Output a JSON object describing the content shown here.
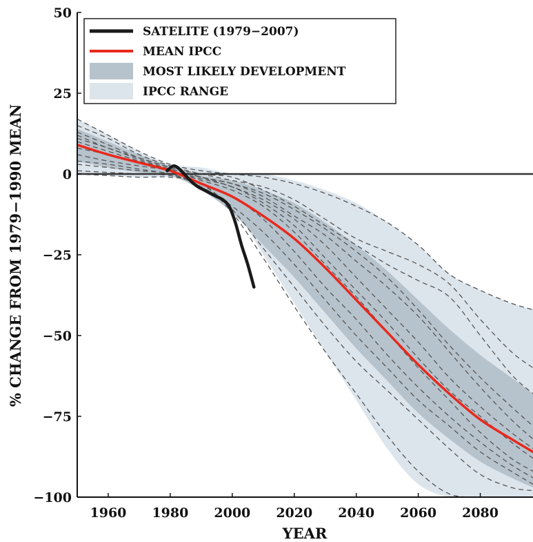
{
  "chart_data": {
    "type": "line",
    "title": "",
    "xlabel": "YEAR",
    "ylabel": "% CHANGE FROM 1979−1990 MEAN",
    "xlim": [
      1950,
      2097
    ],
    "ylim": [
      -100,
      50
    ],
    "x_ticks": [
      1960,
      1980,
      2000,
      2020,
      2040,
      2060,
      2080
    ],
    "y_ticks": [
      50,
      25,
      0,
      -25,
      -50,
      -75,
      -100
    ],
    "reference_line": 0,
    "legend_position": "top-left",
    "colors": {
      "satellite": "#1a1a1a",
      "mean": "#e8281c",
      "likely_band": "#b7c3cc",
      "range_band": "#dde5ec",
      "model_runs": "#555555",
      "zero_line": "#333333"
    },
    "legend": [
      {
        "key": "satellite",
        "label": "SATELITE (1979−2007)",
        "kind": "line"
      },
      {
        "key": "mean",
        "label": "MEAN IPCC",
        "kind": "line"
      },
      {
        "key": "likely",
        "label": "MOST LIKELY DEVELOPMENT",
        "kind": "band"
      },
      {
        "key": "range",
        "label": "IPCC RANGE",
        "kind": "band"
      }
    ],
    "series": [
      {
        "name": "SATELITE (1979−2007)",
        "x": [
          1979,
          1981,
          1983,
          1985,
          1987,
          1989,
          1991,
          1993,
          1995,
          1997,
          1999,
          2001,
          2003,
          2005,
          2007
        ],
        "y": [
          1,
          2.5,
          1.5,
          -0.5,
          -2.5,
          -4,
          -5,
          -6,
          -7,
          -8,
          -10,
          -15,
          -22,
          -28,
          -35
        ]
      },
      {
        "name": "MEAN IPCC",
        "x": [
          1950,
          1960,
          1970,
          1980,
          1990,
          2000,
          2010,
          2020,
          2030,
          2040,
          2050,
          2060,
          2070,
          2080,
          2090,
          2097
        ],
        "y": [
          9,
          6,
          3.5,
          1,
          -3,
          -7,
          -13,
          -20,
          -29,
          -39,
          -49,
          -59,
          -68,
          -76,
          -82,
          -86
        ]
      }
    ],
    "bands": [
      {
        "name": "IPCC RANGE",
        "x": [
          1950,
          1960,
          1970,
          1980,
          1990,
          2000,
          2010,
          2020,
          2030,
          2040,
          2050,
          2060,
          2070,
          2080,
          2090,
          2097
        ],
        "upper": [
          17,
          12,
          7,
          3,
          2,
          0,
          0,
          -2,
          -5,
          -9,
          -15,
          -22,
          -31,
          -36,
          -40,
          -42
        ],
        "lower": [
          0,
          -0.5,
          -1,
          -1,
          -3,
          -10,
          -25,
          -40,
          -55,
          -70,
          -85,
          -96,
          -100,
          -100,
          -100,
          -100
        ]
      },
      {
        "name": "MOST LIKELY DEVELOPMENT",
        "x": [
          1950,
          1960,
          1970,
          1980,
          1990,
          2000,
          2010,
          2020,
          2030,
          2040,
          2050,
          2060,
          2070,
          2080,
          2090,
          2097
        ],
        "upper": [
          14,
          10,
          6,
          2.5,
          -0.5,
          -2,
          -5,
          -9,
          -15,
          -22,
          -30,
          -39,
          -48,
          -56,
          -63,
          -68
        ],
        "lower": [
          4,
          2,
          0.5,
          -0.5,
          -5,
          -12,
          -22,
          -32,
          -43,
          -54,
          -64,
          -74,
          -82,
          -89,
          -94,
          -97
        ]
      }
    ],
    "model_runs": {
      "x": [
        1950,
        1960,
        1970,
        1980,
        1990,
        2000,
        2010,
        2020,
        2030,
        2040,
        2050,
        2060,
        2070,
        2080,
        2090,
        2097
      ],
      "runs": [
        [
          17,
          12,
          7,
          3,
          1,
          0,
          -1,
          -3,
          -6,
          -10,
          -15,
          -22,
          -31,
          -36,
          -40,
          -42
        ],
        [
          15,
          11,
          6,
          2.5,
          0,
          -2,
          -4,
          -8,
          -14,
          -20,
          -24,
          -28,
          -34,
          -45,
          -55,
          -60
        ],
        [
          13,
          9,
          5,
          2,
          0,
          -1,
          -5,
          -10,
          -16,
          -22,
          -28,
          -33,
          -38,
          -50,
          -62,
          -68
        ],
        [
          12,
          8,
          5,
          2,
          -1,
          -3,
          -6,
          -11,
          -17,
          -24,
          -32,
          -42,
          -53,
          -63,
          -72,
          -78
        ],
        [
          11,
          8,
          4.5,
          1.5,
          -1,
          -3,
          -7,
          -13,
          -19,
          -27,
          -35,
          -44,
          -55,
          -66,
          -76,
          -82
        ],
        [
          10,
          7,
          4,
          1.5,
          -1,
          -4,
          -8,
          -14,
          -22,
          -32,
          -42,
          -52,
          -63,
          -72,
          -80,
          -85
        ],
        [
          8,
          6,
          3.5,
          1,
          -1.5,
          -4,
          -9,
          -16,
          -26,
          -36,
          -46,
          -57,
          -67,
          -75,
          -83,
          -88
        ],
        [
          6,
          4,
          2.5,
          1,
          -2,
          -5,
          -10,
          -18,
          -28,
          -38,
          -49,
          -60,
          -70,
          -80,
          -88,
          -92
        ],
        [
          4,
          3,
          1.5,
          0,
          -3,
          -7,
          -14,
          -24,
          -35,
          -45,
          -56,
          -66,
          -75,
          -83,
          -90,
          -94
        ],
        [
          3,
          2,
          1,
          0,
          -4,
          -10,
          -18,
          -28,
          -39,
          -50,
          -60,
          -70,
          -78,
          -86,
          -92,
          -96
        ],
        [
          1,
          0.5,
          0,
          -0.5,
          -3,
          -11,
          -23,
          -35,
          -47,
          -58,
          -67,
          -76,
          -85,
          -93,
          -97,
          -98
        ],
        [
          0,
          -0.5,
          -1,
          -1,
          -3,
          -12,
          -26,
          -41,
          -55,
          -68,
          -81,
          -92,
          -99,
          -100,
          -100,
          -100
        ]
      ]
    }
  }
}
